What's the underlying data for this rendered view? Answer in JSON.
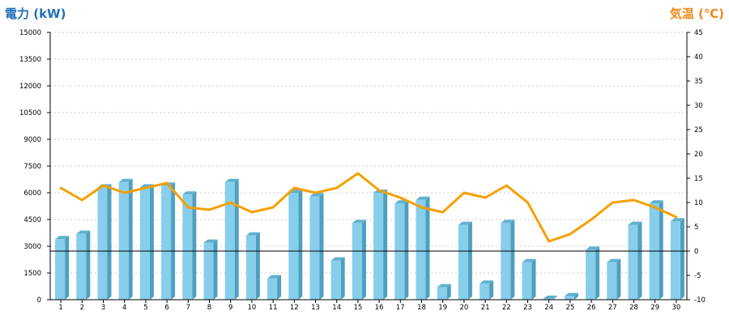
{
  "chart_data": {
    "type": "bar",
    "title": "",
    "left_axis_label": "電力 (kW)",
    "right_axis_label": "気温 (℃)",
    "categories": [
      "1",
      "2",
      "3",
      "4",
      "5",
      "6",
      "7",
      "8",
      "9",
      "10",
      "11",
      "12",
      "13",
      "14",
      "15",
      "16",
      "17",
      "18",
      "19",
      "20",
      "21",
      "22",
      "23",
      "24",
      "25",
      "26",
      "27",
      "28",
      "29",
      "30"
    ],
    "left_ticks": [
      "0",
      "1500",
      "3000",
      "4500",
      "6000",
      "7500",
      "9000",
      "10500",
      "12000",
      "13500",
      "15000"
    ],
    "right_ticks": [
      "-10",
      "-5",
      "0",
      "5",
      "10",
      "15",
      "20",
      "25",
      "30",
      "35",
      "40",
      "45"
    ],
    "ylim_left": [
      0,
      15000
    ],
    "ylim_right": [
      -10,
      45
    ],
    "grid": true,
    "series": [
      {
        "type": "bar",
        "axis": "left",
        "values": [
          3400,
          3700,
          6300,
          6600,
          6300,
          6400,
          5900,
          3200,
          6600,
          3600,
          1200,
          6000,
          5800,
          2200,
          4300,
          6000,
          5400,
          5600,
          700,
          4200,
          900,
          4300,
          2100,
          50,
          200,
          2800,
          2100,
          4200,
          5400,
          4400
        ]
      },
      {
        "type": "line",
        "axis": "right",
        "values": [
          13,
          10.5,
          13.5,
          12,
          13,
          14,
          9,
          8.5,
          10,
          8,
          9,
          13,
          12,
          13,
          16,
          12.5,
          11,
          9,
          8,
          12,
          11,
          13.5,
          10,
          2,
          3.5,
          6.5,
          10,
          10.5,
          9,
          7
        ]
      }
    ],
    "reference_line": {
      "axis": "right",
      "value": 0
    },
    "colors": {
      "left_axis_label": "#1f6fb5",
      "right_axis_label": "#f08a1c",
      "bar_front": "#87ceeb",
      "bar_side": "#4f9fbf",
      "bar_top": "#5fb1cf",
      "line": "#f5a000",
      "grid": "#bbbbbb",
      "axis": "#000000"
    }
  }
}
